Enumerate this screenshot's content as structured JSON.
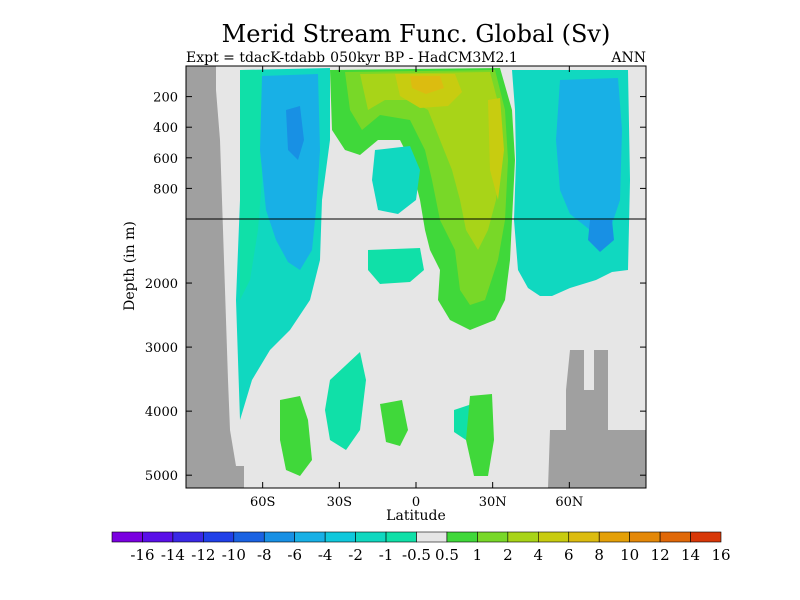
{
  "chart_data": {
    "type": "contour",
    "title": "Merid Stream Func. Global (Sv)",
    "subtitle_left": "Expt = tdacK-tdabb",
    "subtitle_center": "050kyr BP - HadCM3M2.1",
    "subtitle_right": "ANN",
    "xlabel": "Latitude",
    "ylabel": "Depth (in m)",
    "xlim": [
      -90,
      90
    ],
    "x_ticks": [
      {
        "value": -60,
        "label": "60S"
      },
      {
        "value": -30,
        "label": "30S"
      },
      {
        "value": 0,
        "label": "0"
      },
      {
        "value": 30,
        "label": "30N"
      },
      {
        "value": 60,
        "label": "60N"
      }
    ],
    "y_ticks_upper": [
      {
        "value": 200,
        "label": "200"
      },
      {
        "value": 400,
        "label": "400"
      },
      {
        "value": 600,
        "label": "600"
      },
      {
        "value": 800,
        "label": "800"
      }
    ],
    "y_ticks_lower": [
      {
        "value": 2000,
        "label": "2000"
      },
      {
        "value": 3000,
        "label": "3000"
      },
      {
        "value": 4000,
        "label": "4000"
      },
      {
        "value": 5000,
        "label": "5000"
      }
    ],
    "depth_upper_range": [
      0,
      1000
    ],
    "depth_lower_range": [
      1000,
      5200
    ],
    "levels": [
      "-16",
      "-14",
      "-12",
      "-10",
      "-8",
      "-6",
      "-4",
      "-2",
      "-1",
      "-0.5",
      "0.5",
      "1",
      "2",
      "4",
      "6",
      "8",
      "10",
      "12",
      "14",
      "16"
    ],
    "colors": [
      "#7a00e0",
      "#5a10e8",
      "#3a28e6",
      "#2040e8",
      "#1a62e2",
      "#1890e4",
      "#18b0e6",
      "#10c8dc",
      "#10d8c0",
      "#10e0a8",
      "#e6e6e6",
      "#40d83a",
      "#78d828",
      "#a8d418",
      "#c8cc10",
      "#dcbc10",
      "#e4a008",
      "#e48808",
      "#e06808",
      "#d83808"
    ],
    "background_color": "#e6e6e6",
    "land_color": "#a0a0a0"
  }
}
